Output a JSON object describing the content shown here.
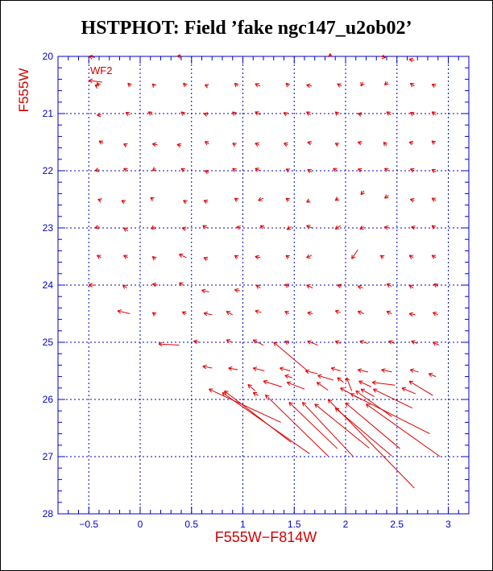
{
  "colors": {
    "axis": "#0000cc",
    "vectors": "#dd0000",
    "label": "#d00000"
  },
  "chart_data": {
    "type": "scatter",
    "title": "HSTPHOT: Field ’fake ngc147_u2ob02’",
    "xlabel": "F555W−F814W",
    "ylabel": "F555W",
    "chip_label": "WF2",
    "xlim": [
      -0.8,
      3.2
    ],
    "ylim": [
      28,
      20
    ],
    "xticks": [
      "−0.5",
      "0",
      "0.5",
      "1",
      "1.5",
      "2",
      "2.5",
      "3"
    ],
    "yticks": [
      "20",
      "21",
      "22",
      "23",
      "24",
      "25",
      "26",
      "27",
      "28"
    ],
    "grid": true,
    "vectors": [
      [
        -0.44,
        20.02,
        -0.5,
        20.0
      ],
      [
        0.37,
        20.02,
        0.39,
        19.97
      ],
      [
        1.85,
        20.0,
        1.85,
        19.95
      ],
      [
        2.34,
        20.0,
        2.39,
        20.02
      ],
      [
        2.67,
        20.07,
        2.62,
        20.05
      ],
      [
        -0.37,
        20.45,
        -0.5,
        20.42
      ],
      [
        -0.4,
        20.52,
        -0.42,
        20.46
      ],
      [
        -0.42,
        20.52,
        -0.44,
        20.5
      ],
      [
        -0.09,
        20.52,
        -0.12,
        20.47
      ],
      [
        0.14,
        20.52,
        0.12,
        20.48
      ],
      [
        0.45,
        20.52,
        0.42,
        20.47
      ],
      [
        0.66,
        20.52,
        0.63,
        20.5
      ],
      [
        0.95,
        20.52,
        0.92,
        20.47
      ],
      [
        1.17,
        20.52,
        1.12,
        20.48
      ],
      [
        1.45,
        20.52,
        1.42,
        20.47
      ],
      [
        1.67,
        20.52,
        1.62,
        20.5
      ],
      [
        1.96,
        20.52,
        1.92,
        20.48
      ],
      [
        2.17,
        20.45,
        2.15,
        20.52
      ],
      [
        2.41,
        20.45,
        2.38,
        20.5
      ],
      [
        2.67,
        20.52,
        2.63,
        20.47
      ],
      [
        2.88,
        20.52,
        2.84,
        20.49
      ],
      [
        -0.38,
        21.02,
        -0.42,
        21.03
      ],
      [
        -0.1,
        21.02,
        -0.14,
        20.98
      ],
      [
        0.12,
        21.02,
        0.08,
        20.97
      ],
      [
        0.43,
        21.02,
        0.4,
        20.97
      ],
      [
        0.66,
        21.02,
        0.62,
        21.0
      ],
      [
        0.93,
        21.02,
        0.9,
        20.97
      ],
      [
        1.17,
        21.02,
        1.12,
        20.97
      ],
      [
        1.43,
        21.02,
        1.4,
        20.98
      ],
      [
        1.66,
        21.02,
        1.62,
        20.97
      ],
      [
        1.93,
        21.02,
        1.9,
        20.97
      ],
      [
        2.16,
        21.02,
        2.12,
        21.0
      ],
      [
        2.44,
        21.02,
        2.4,
        20.97
      ],
      [
        2.67,
        21.02,
        2.63,
        20.98
      ],
      [
        2.88,
        21.02,
        2.84,
        20.97
      ],
      [
        -0.36,
        21.52,
        -0.4,
        21.48
      ],
      [
        -0.13,
        21.56,
        -0.16,
        21.53
      ],
      [
        0.17,
        21.55,
        0.12,
        21.53
      ],
      [
        0.4,
        21.56,
        0.36,
        21.54
      ],
      [
        0.67,
        21.53,
        0.63,
        21.49
      ],
      [
        0.93,
        21.55,
        0.9,
        21.52
      ],
      [
        1.16,
        21.55,
        1.12,
        21.52
      ],
      [
        1.44,
        21.55,
        1.4,
        21.52
      ],
      [
        1.67,
        21.52,
        1.63,
        21.5
      ],
      [
        1.93,
        21.55,
        1.9,
        21.52
      ],
      [
        2.16,
        21.52,
        2.12,
        21.5
      ],
      [
        2.4,
        21.56,
        2.37,
        21.5
      ],
      [
        2.66,
        21.52,
        2.62,
        21.5
      ],
      [
        2.87,
        21.52,
        2.84,
        21.48
      ],
      [
        -0.4,
        21.98,
        -0.44,
        22.0
      ],
      [
        -0.12,
        22.0,
        -0.16,
        21.96
      ],
      [
        0.15,
        21.96,
        0.12,
        22.0
      ],
      [
        0.43,
        22.0,
        0.4,
        21.96
      ],
      [
        0.67,
        22.03,
        0.63,
        22.0
      ],
      [
        0.93,
        22.0,
        0.9,
        21.96
      ],
      [
        1.17,
        22.0,
        1.12,
        21.96
      ],
      [
        1.45,
        22.0,
        1.42,
        21.97
      ],
      [
        1.67,
        22.02,
        1.63,
        21.98
      ],
      [
        1.92,
        22.0,
        1.88,
        21.96
      ],
      [
        2.16,
        22.0,
        2.12,
        21.97
      ],
      [
        2.42,
        22.0,
        2.38,
        21.96
      ],
      [
        2.67,
        22.0,
        2.63,
        21.97
      ],
      [
        2.88,
        22.02,
        2.84,
        21.98
      ],
      [
        -0.38,
        22.52,
        -0.41,
        22.5
      ],
      [
        -0.15,
        22.55,
        -0.18,
        22.52
      ],
      [
        0.13,
        22.5,
        0.1,
        22.47
      ],
      [
        0.45,
        22.55,
        0.42,
        22.52
      ],
      [
        0.66,
        22.55,
        0.62,
        22.52
      ],
      [
        0.95,
        22.52,
        0.92,
        22.48
      ],
      [
        1.2,
        22.48,
        1.15,
        22.52
      ],
      [
        1.45,
        22.52,
        1.42,
        22.48
      ],
      [
        1.65,
        22.52,
        1.62,
        22.55
      ],
      [
        1.93,
        22.48,
        1.9,
        22.52
      ],
      [
        2.18,
        22.35,
        2.15,
        22.42
      ],
      [
        2.42,
        22.43,
        2.38,
        22.48
      ],
      [
        2.67,
        22.52,
        2.63,
        22.5
      ],
      [
        2.88,
        22.52,
        2.84,
        22.48
      ],
      [
        -0.4,
        22.98,
        -0.44,
        23.0
      ],
      [
        -0.12,
        23.05,
        -0.16,
        23.0
      ],
      [
        0.14,
        22.98,
        0.11,
        23.02
      ],
      [
        0.45,
        23.02,
        0.41,
        23.0
      ],
      [
        0.65,
        23.0,
        0.61,
        22.96
      ],
      [
        0.98,
        23.0,
        0.94,
        22.98
      ],
      [
        1.21,
        23.0,
        1.17,
        22.96
      ],
      [
        1.47,
        22.98,
        1.43,
        23.03
      ],
      [
        1.67,
        23.0,
        1.62,
        22.96
      ],
      [
        1.95,
        22.96,
        1.9,
        23.02
      ],
      [
        2.18,
        22.98,
        2.14,
        23.02
      ],
      [
        2.42,
        23.0,
        2.38,
        22.98
      ],
      [
        2.68,
        23.0,
        2.64,
        22.98
      ],
      [
        2.87,
        23.0,
        2.84,
        22.96
      ],
      [
        -0.38,
        23.52,
        -0.42,
        23.48
      ],
      [
        -0.12,
        23.52,
        -0.16,
        23.48
      ],
      [
        0.15,
        23.55,
        0.12,
        23.5
      ],
      [
        0.45,
        23.52,
        0.38,
        23.46
      ],
      [
        0.66,
        23.55,
        0.62,
        23.52
      ],
      [
        0.95,
        23.52,
        0.92,
        23.48
      ],
      [
        1.17,
        23.52,
        1.12,
        23.5
      ],
      [
        1.45,
        23.52,
        1.42,
        23.48
      ],
      [
        1.67,
        23.48,
        1.62,
        23.52
      ],
      [
        2.12,
        23.38,
        2.06,
        23.54
      ],
      [
        2.37,
        23.52,
        2.34,
        23.48
      ],
      [
        2.66,
        23.52,
        2.62,
        23.48
      ],
      [
        2.88,
        23.52,
        2.84,
        23.48
      ],
      [
        -0.44,
        24.0,
        -0.5,
        24.0
      ],
      [
        -0.13,
        24.05,
        -0.17,
        24.0
      ],
      [
        0.17,
        24.0,
        0.12,
        23.98
      ],
      [
        0.42,
        24.0,
        0.38,
        23.96
      ],
      [
        0.67,
        24.12,
        0.6,
        24.09
      ],
      [
        0.97,
        24.1,
        0.92,
        24.08
      ],
      [
        1.17,
        24.05,
        1.13,
        24.0
      ],
      [
        1.45,
        24.02,
        1.41,
        23.99
      ],
      [
        1.68,
        24.05,
        1.62,
        24.0
      ],
      [
        1.96,
        24.02,
        1.92,
        24.0
      ],
      [
        2.17,
        24.05,
        2.12,
        24.02
      ],
      [
        2.45,
        24.02,
        2.4,
        23.98
      ],
      [
        2.66,
        24.05,
        2.62,
        24.0
      ],
      [
        2.9,
        24.02,
        2.86,
        23.98
      ],
      [
        -0.1,
        24.5,
        -0.22,
        24.45
      ],
      [
        0.15,
        24.52,
        0.12,
        24.48
      ],
      [
        0.45,
        24.5,
        0.41,
        24.47
      ],
      [
        0.7,
        24.52,
        0.62,
        24.49
      ],
      [
        0.9,
        24.52,
        0.84,
        24.46
      ],
      [
        1.18,
        24.48,
        1.12,
        24.45
      ],
      [
        1.45,
        24.5,
        1.41,
        24.46
      ],
      [
        1.68,
        24.5,
        1.63,
        24.48
      ],
      [
        1.95,
        24.48,
        1.9,
        24.45
      ],
      [
        2.18,
        24.5,
        2.12,
        24.46
      ],
      [
        2.45,
        24.5,
        2.4,
        24.46
      ],
      [
        2.68,
        24.52,
        2.62,
        24.5
      ],
      [
        2.9,
        24.52,
        2.85,
        24.48
      ],
      [
        0.38,
        25.05,
        0.18,
        25.03
      ],
      [
        0.58,
        25.0,
        0.52,
        24.98
      ],
      [
        0.9,
        25.0,
        0.84,
        24.96
      ],
      [
        1.2,
        25.05,
        1.1,
        24.96
      ],
      [
        1.45,
        25.02,
        1.41,
        24.98
      ],
      [
        1.73,
        25.05,
        1.63,
        24.98
      ],
      [
        1.95,
        25.02,
        1.9,
        24.98
      ],
      [
        2.22,
        25.02,
        2.14,
        24.98
      ],
      [
        2.48,
        25.02,
        2.42,
        24.98
      ],
      [
        2.7,
        25.02,
        2.64,
        24.98
      ],
      [
        2.91,
        25.05,
        2.85,
        25.0
      ],
      [
        0.7,
        25.45,
        0.61,
        25.42
      ],
      [
        0.95,
        25.48,
        0.86,
        25.45
      ],
      [
        1.21,
        25.5,
        1.1,
        25.45
      ],
      [
        1.46,
        25.5,
        1.36,
        25.45
      ],
      [
        1.73,
        25.55,
        1.61,
        25.5
      ],
      [
        1.95,
        25.5,
        1.86,
        25.45
      ],
      [
        2.22,
        25.52,
        2.12,
        25.48
      ],
      [
        2.45,
        25.52,
        2.35,
        25.48
      ],
      [
        2.71,
        25.52,
        2.63,
        25.48
      ],
      [
        2.88,
        25.6,
        2.81,
        25.55
      ],
      [
        1.63,
        25.5,
        1.3,
        25.0
      ],
      [
        1.88,
        25.66,
        1.73,
        25.58
      ],
      [
        1.48,
        25.62,
        1.41,
        25.58
      ],
      [
        1.98,
        25.7,
        1.92,
        25.62
      ],
      [
        2.06,
        25.85,
        2.01,
        25.62
      ],
      [
        2.25,
        25.78,
        2.13,
        25.68
      ],
      [
        2.48,
        25.75,
        2.26,
        25.7
      ],
      [
        2.68,
        25.9,
        2.55,
        25.8
      ],
      [
        2.85,
        25.93,
        2.62,
        25.68
      ],
      [
        1.38,
        25.78,
        1.2,
        25.68
      ],
      [
        1.6,
        25.82,
        1.43,
        25.7
      ],
      [
        1.83,
        25.84,
        1.72,
        25.7
      ],
      [
        2.13,
        25.98,
        1.95,
        25.8
      ],
      [
        2.28,
        25.95,
        2.15,
        25.82
      ],
      [
        1.12,
        25.85,
        1.05,
        25.74
      ],
      [
        1.37,
        26.4,
        0.67,
        25.82
      ],
      [
        1.47,
        26.75,
        0.82,
        25.85
      ],
      [
        1.65,
        26.95,
        0.8,
        25.88
      ],
      [
        1.15,
        25.93,
        1.1,
        25.88
      ],
      [
        1.83,
        26.99,
        1.22,
        25.92
      ],
      [
        1.92,
        26.86,
        1.45,
        26.05
      ],
      [
        2.07,
        26.99,
        1.58,
        26.05
      ],
      [
        2.23,
        26.85,
        1.7,
        26.08
      ],
      [
        2.45,
        26.99,
        1.9,
        26.15
      ],
      [
        2.53,
        26.86,
        2.0,
        26.06
      ],
      [
        2.67,
        27.55,
        1.83,
        26.0
      ],
      [
        2.92,
        27.0,
        2.2,
        26.08
      ],
      [
        2.82,
        26.6,
        2.05,
        25.9
      ],
      [
        2.65,
        26.15,
        2.27,
        25.82
      ],
      [
        2.45,
        26.3,
        2.1,
        25.85
      ]
    ]
  }
}
